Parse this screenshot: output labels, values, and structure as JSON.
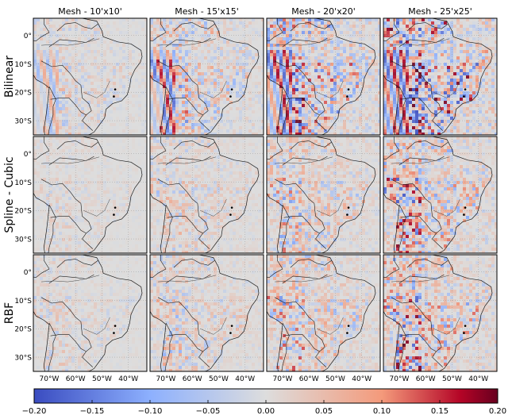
{
  "chart_data": {
    "type": "heatmap",
    "layout": {
      "rows": 3,
      "cols": 4
    },
    "col_titles": [
      "Mesh - 10'x10'",
      "Mesh - 15'x15'",
      "Mesh - 20'x20'",
      "Mesh - 25'x25'"
    ],
    "row_labels": [
      "Bilinear",
      "Spline - Cubic",
      "RBF"
    ],
    "xticks": [
      "70°W",
      "60°W",
      "50°W",
      "40°W"
    ],
    "yticks": [
      "0°",
      "10°S",
      "20°S",
      "30°S"
    ],
    "xlim": [
      -76,
      -33
    ],
    "ylim": [
      -35,
      6
    ],
    "colorbar": {
      "ticks": [
        "−0.20",
        "−0.15",
        "−0.10",
        "−0.05",
        "0.00",
        "0.05",
        "0.10",
        "0.15",
        "0.20"
      ],
      "range": [
        -0.2,
        0.2
      ]
    },
    "colormap": {
      "stops": [
        "#3a4cc0",
        "#8db0fe",
        "#dddddd",
        "#f49a7b",
        "#b40426",
        "#67001f"
      ]
    },
    "intensity": [
      [
        0.22,
        0.45,
        0.75,
        1.0
      ],
      [
        0.12,
        0.25,
        0.4,
        0.6
      ],
      [
        0.16,
        0.3,
        0.45,
        0.62
      ]
    ]
  }
}
